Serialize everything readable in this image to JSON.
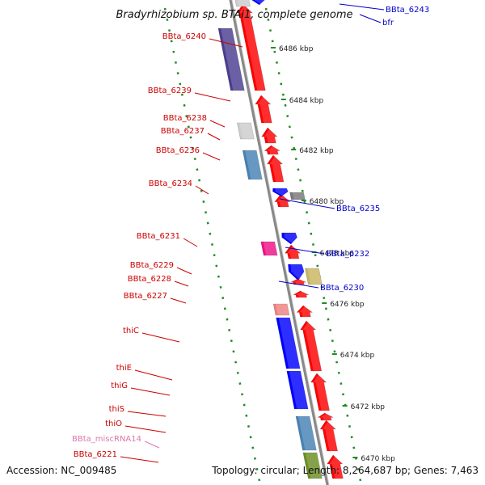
{
  "title": "Bradyrhizobium sp. BTAi1, complete genome",
  "footer": {
    "accession": "Accession: NC_009485",
    "topology": "Topology: circular; Length: 8,264,687 bp; Genes: 7,463"
  },
  "colors": {
    "red": "#ff0000",
    "blue": "#0000ff",
    "navy": "#4a3d8f",
    "steel": "#4682b4",
    "olive_green": "#6b8e23",
    "khaki": "#c8b560",
    "magenta": "#ee1188",
    "pink": "#f08080",
    "grey": "#cccccc",
    "dark_grey": "#777777",
    "tick_green": "#228b22",
    "label_red": "#cc0000",
    "label_blue": "#0000cc",
    "label_pink": "#dd77aa",
    "backbone": "#888888"
  },
  "ticks": [
    {
      "label": "6486 kbp"
    },
    {
      "label": "6484 kbp"
    },
    {
      "label": "6482 kbp"
    },
    {
      "label": "6480 kbp"
    },
    {
      "label": "6478 kbp"
    },
    {
      "label": "6476 kbp"
    },
    {
      "label": "6474 kbp"
    },
    {
      "label": "6472 kbp"
    },
    {
      "label": "6470 kbp"
    }
  ],
  "labels_left": [
    {
      "text": "BBta_6240",
      "color": "label_red"
    },
    {
      "text": "BBta_6239",
      "color": "label_red"
    },
    {
      "text": "BBta_6238",
      "color": "label_red"
    },
    {
      "text": "BBta_6237",
      "color": "label_red"
    },
    {
      "text": "BBta_6236",
      "color": "label_red"
    },
    {
      "text": "BBta_6234",
      "color": "label_red"
    },
    {
      "text": "BBta_6231",
      "color": "label_red"
    },
    {
      "text": "BBta_6229",
      "color": "label_red"
    },
    {
      "text": "BBta_6228",
      "color": "label_red"
    },
    {
      "text": "BBta_6227",
      "color": "label_red"
    },
    {
      "text": "thiC",
      "color": "label_red"
    },
    {
      "text": "thiE",
      "color": "label_red"
    },
    {
      "text": "thiG",
      "color": "label_red"
    },
    {
      "text": "thiS",
      "color": "label_red"
    },
    {
      "text": "thiO",
      "color": "label_red"
    },
    {
      "text": "BBta_miscRNA14",
      "color": "label_pink"
    },
    {
      "text": "BBta_6221",
      "color": "label_red"
    }
  ],
  "labels_right": [
    {
      "text": "BBta_6243",
      "color": "label_blue"
    },
    {
      "text": "bfr",
      "color": "label_blue"
    },
    {
      "text": "BBta_6235",
      "color": "label_blue"
    },
    {
      "text": "BBta_6232",
      "color": "label_blue"
    },
    {
      "text": "BBta_6230",
      "color": "label_blue"
    }
  ]
}
